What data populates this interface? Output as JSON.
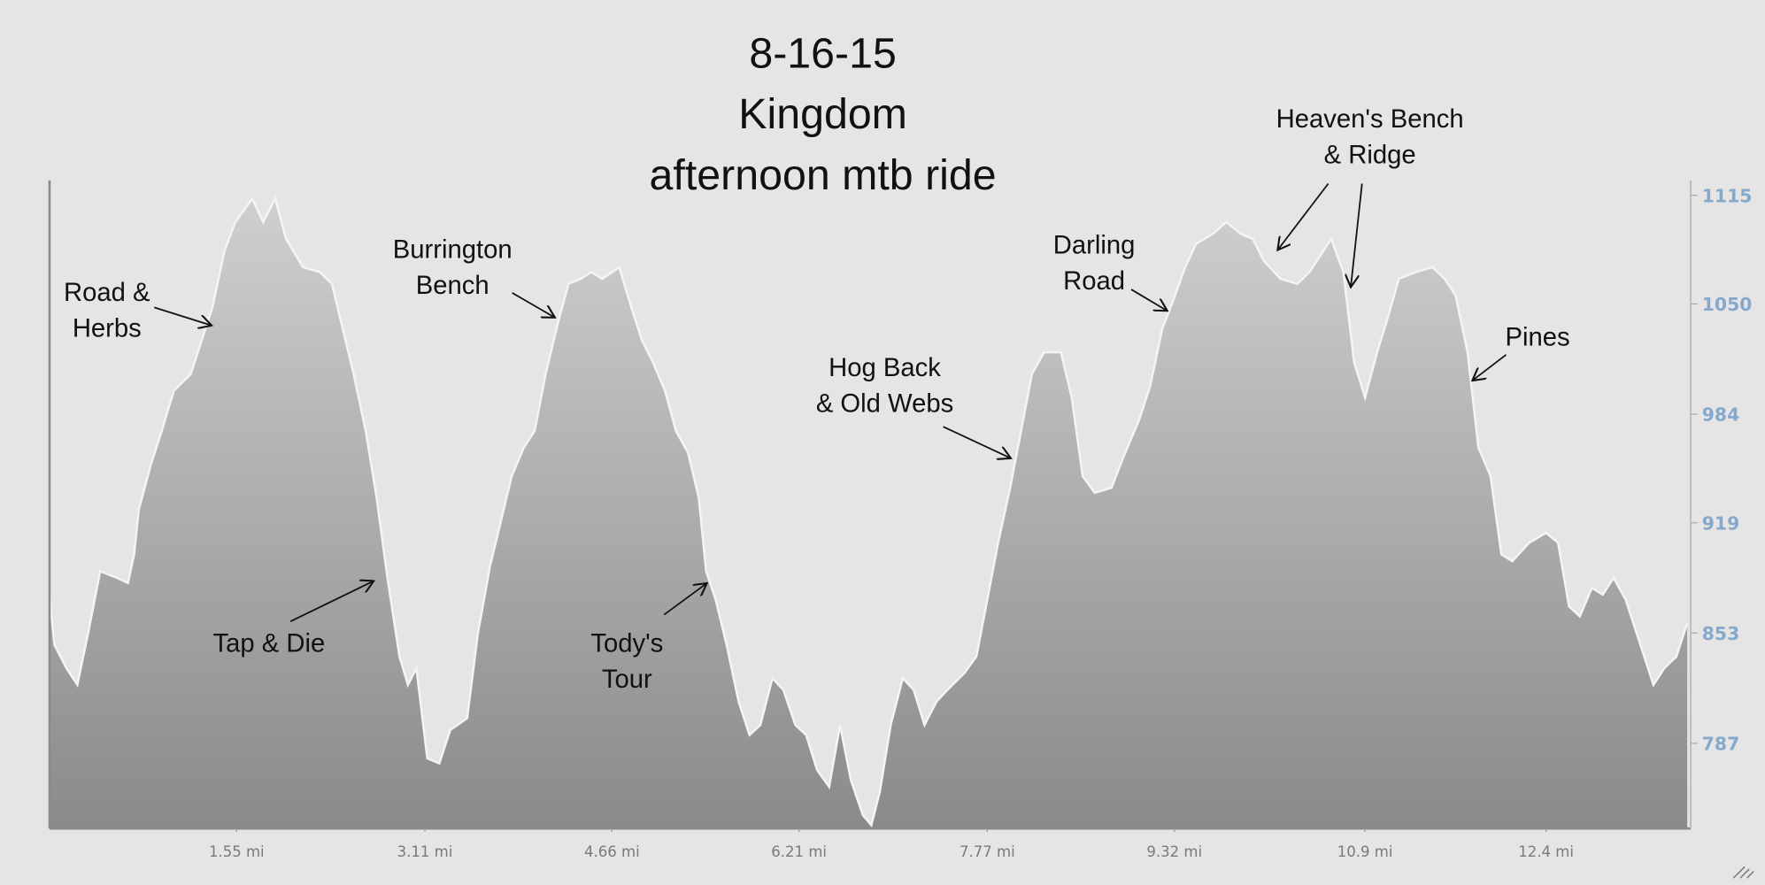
{
  "chart_data": {
    "type": "area",
    "title": [
      "8-16-15",
      "Kingdom",
      "afternoon mtb ride"
    ],
    "x": [
      0,
      0.04,
      0.14,
      0.23,
      0.32,
      0.42,
      0.56,
      0.65,
      0.7,
      0.74,
      0.84,
      0.93,
      1.03,
      1.17,
      1.26,
      1.35,
      1.45,
      1.54,
      1.68,
      1.77,
      1.87,
      1.96,
      2.1,
      2.24,
      2.34,
      2.43,
      2.52,
      2.62,
      2.71,
      2.8,
      2.9,
      2.97,
      3.04,
      3.13,
      3.23,
      3.32,
      3.46,
      3.55,
      3.65,
      3.74,
      3.83,
      3.93,
      4.02,
      4.11,
      4.21,
      4.3,
      4.4,
      4.49,
      4.58,
      4.72,
      4.82,
      4.91,
      5.0,
      5.1,
      5.19,
      5.29,
      5.38,
      5.44,
      5.52,
      5.61,
      5.71,
      5.8,
      5.89,
      5.99,
      6.08,
      6.18,
      6.27,
      6.36,
      6.46,
      6.55,
      6.64,
      6.74,
      6.81,
      6.88,
      6.97,
      7.07,
      7.16,
      7.25,
      7.35,
      7.44,
      7.58,
      7.68,
      7.77,
      7.86,
      7.96,
      8.05,
      8.14,
      8.24,
      8.38,
      8.47,
      8.56,
      8.66,
      8.8,
      8.89,
      9.03,
      9.12,
      9.22,
      9.31,
      9.41,
      9.5,
      9.64,
      9.75,
      9.87,
      9.97,
      10.06,
      10.2,
      10.34,
      10.44,
      10.53,
      10.62,
      10.72,
      10.81,
      10.9,
      11.0,
      11.09,
      11.18,
      11.32,
      11.46,
      11.56,
      11.65,
      11.75,
      11.84,
      11.94,
      12.03,
      12.12,
      12.26,
      12.4,
      12.5,
      12.59,
      12.68,
      12.78,
      12.87,
      12.96,
      13.06,
      13.15,
      13.29,
      13.38,
      13.48,
      13.57
    ],
    "values": [
      876,
      846,
      832,
      822,
      853,
      890,
      886,
      883,
      900,
      927,
      954,
      974,
      998,
      1008,
      1028,
      1048,
      1082,
      1099,
      1113,
      1099,
      1113,
      1089,
      1072,
      1069,
      1062,
      1035,
      1008,
      974,
      934,
      886,
      839,
      822,
      832,
      778,
      775,
      795,
      802,
      853,
      893,
      920,
      947,
      964,
      974,
      1008,
      1038,
      1062,
      1065,
      1069,
      1065,
      1072,
      1048,
      1028,
      1015,
      998,
      974,
      961,
      934,
      890,
      873,
      846,
      812,
      792,
      798,
      826,
      819,
      798,
      792,
      771,
      761,
      798,
      765,
      744,
      738,
      758,
      798,
      826,
      819,
      798,
      812,
      819,
      829,
      839,
      873,
      907,
      940,
      974,
      1008,
      1021,
      1021,
      994,
      947,
      937,
      940,
      957,
      981,
      1001,
      1035,
      1052,
      1072,
      1086,
      1092,
      1099,
      1092,
      1089,
      1076,
      1065,
      1062,
      1069,
      1079,
      1089,
      1069,
      1015,
      994,
      1021,
      1042,
      1065,
      1069,
      1072,
      1065,
      1055,
      1021,
      964,
      947,
      900,
      896,
      907,
      913,
      907,
      869,
      863,
      880,
      876,
      886,
      873,
      853,
      822,
      832,
      839,
      859
    ],
    "xlim": [
      0,
      13.58
    ],
    "ylim": [
      736,
      1124
    ],
    "xticks": [
      {
        "value": 1.55,
        "label": "1.55 mi"
      },
      {
        "value": 3.11,
        "label": "3.11 mi"
      },
      {
        "value": 4.66,
        "label": "4.66 mi"
      },
      {
        "value": 6.21,
        "label": "6.21 mi"
      },
      {
        "value": 7.77,
        "label": "7.77 mi"
      },
      {
        "value": 9.32,
        "label": "9.32 mi"
      },
      {
        "value": 10.9,
        "label": "10.9 mi"
      },
      {
        "value": 12.4,
        "label": "12.4 mi"
      }
    ],
    "y2ticks": [
      787,
      853,
      919,
      984,
      1050,
      1115
    ],
    "annotations": [
      {
        "lines": [
          "Road &",
          "Herbs"
        ]
      },
      {
        "lines": [
          "Burrington",
          "Bench"
        ]
      },
      {
        "lines": [
          "Tap & Die"
        ]
      },
      {
        "lines": [
          "Tody's",
          "Tour"
        ]
      },
      {
        "lines": [
          "Hog Back",
          "& Old Webs"
        ]
      },
      {
        "lines": [
          "Darling",
          "Road"
        ]
      },
      {
        "lines": [
          "Heaven's Bench",
          "& Ridge"
        ]
      },
      {
        "lines": [
          "Pines"
        ]
      }
    ]
  }
}
